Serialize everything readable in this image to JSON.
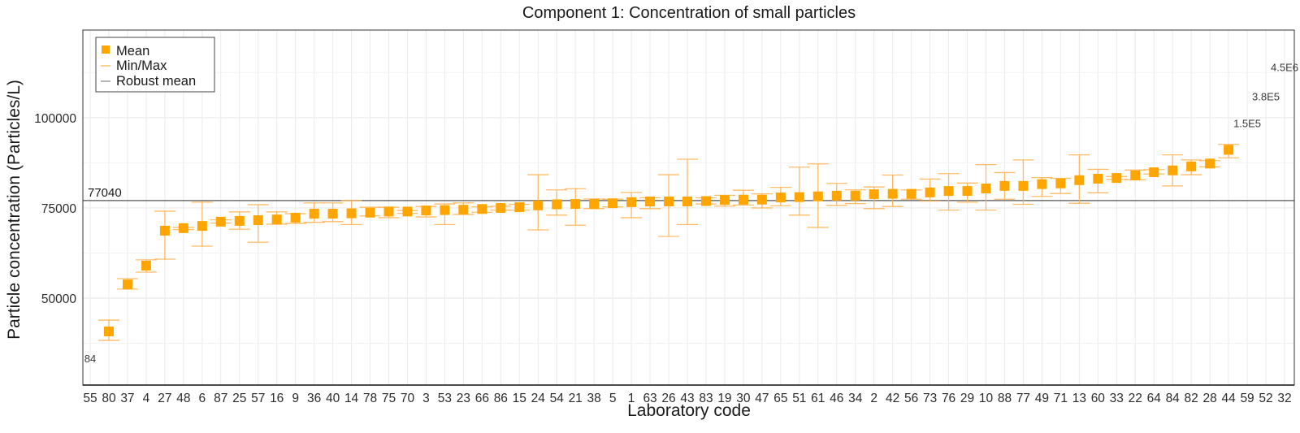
{
  "chart_data": {
    "type": "scatter",
    "title": "Component 1: Concentration of small particles",
    "xlabel": "Laboratory code",
    "ylabel": "Particle concentration (Particles/L)",
    "ylim": [
      25900,
      124300
    ],
    "y_ticks": [
      50000,
      75000,
      100000
    ],
    "y_tick_labels": [
      "50000",
      "75000",
      "100000"
    ],
    "y_minor_grid": [
      37500,
      62500,
      87500,
      112500
    ],
    "grid": true,
    "legend": {
      "position": "top-left",
      "entries": [
        {
          "label": "Mean",
          "kind": "square"
        },
        {
          "label": "Min/Max",
          "kind": "errorbar"
        },
        {
          "label": "Robust mean",
          "kind": "hline"
        }
      ]
    },
    "robust_mean": {
      "value": 77040,
      "label": "77040"
    },
    "colors": {
      "mean": "#FFA500",
      "minmax": "#FFB04D",
      "robust_mean": "#555555",
      "grid": "#EBEBEB"
    },
    "categories": [
      "55",
      "80",
      "37",
      "4",
      "27",
      "48",
      "6",
      "87",
      "25",
      "57",
      "16",
      "9",
      "36",
      "40",
      "14",
      "78",
      "75",
      "70",
      "3",
      "53",
      "23",
      "66",
      "86",
      "15",
      "24",
      "54",
      "21",
      "38",
      "5",
      "1",
      "63",
      "26",
      "43",
      "83",
      "19",
      "30",
      "47",
      "65",
      "51",
      "61",
      "46",
      "34",
      "2",
      "42",
      "56",
      "73",
      "76",
      "29",
      "10",
      "88",
      "77",
      "49",
      "71",
      "13",
      "60",
      "33",
      "22",
      "64",
      "84",
      "82",
      "28",
      "44",
      "59",
      "52",
      "32"
    ],
    "series": [
      {
        "name": "Mean",
        "values": [
          null,
          40770,
          53800,
          59000,
          68700,
          69400,
          70000,
          71200,
          71400,
          71600,
          71800,
          72300,
          73400,
          73400,
          73500,
          73700,
          74000,
          74000,
          74300,
          74400,
          74500,
          74700,
          75000,
          75200,
          75700,
          76000,
          76100,
          76100,
          76300,
          76600,
          76800,
          76800,
          76800,
          76900,
          77200,
          77300,
          77300,
          77900,
          78000,
          78200,
          78400,
          78400,
          78800,
          78900,
          78900,
          79300,
          79700,
          79700,
          80400,
          81100,
          81100,
          81600,
          81800,
          82700,
          83100,
          83300,
          84000,
          84900,
          85400,
          86500,
          87300,
          91100,
          null,
          null,
          null
        ]
      },
      {
        "name": "Min",
        "values": [
          null,
          38300,
          52500,
          57200,
          60800,
          69000,
          64400,
          70800,
          69100,
          65500,
          70500,
          70700,
          71000,
          71200,
          70400,
          72800,
          72300,
          73500,
          72500,
          70400,
          73200,
          73800,
          74400,
          74400,
          68900,
          73000,
          70200,
          74800,
          75300,
          72300,
          74800,
          67100,
          70400,
          76100,
          75500,
          75800,
          75000,
          75600,
          73000,
          69600,
          75700,
          76200,
          74800,
          75400,
          77400,
          76900,
          74400,
          76600,
          74400,
          77400,
          76000,
          78200,
          79000,
          76300,
          79200,
          82900,
          82800,
          84400,
          81100,
          84200,
          86400,
          88900,
          null,
          null,
          null
        ]
      },
      {
        "name": "Max",
        "values": [
          null,
          43900,
          55400,
          60600,
          74100,
          69600,
          76600,
          71700,
          73900,
          75900,
          73900,
          73400,
          76400,
          76400,
          77000,
          75200,
          75200,
          74300,
          75400,
          76100,
          76400,
          75300,
          75500,
          76000,
          84200,
          80000,
          80300,
          77500,
          77400,
          79300,
          77800,
          84200,
          88500,
          77800,
          78500,
          79900,
          78900,
          80700,
          86300,
          87200,
          81800,
          80000,
          80800,
          84100,
          80000,
          83000,
          84500,
          81900,
          87000,
          84800,
          88300,
          83400,
          83200,
          89700,
          85700,
          83700,
          85500,
          85600,
          89700,
          88300,
          88100,
          92600,
          null,
          null,
          null
        ]
      }
    ],
    "offscale_annotations": [
      {
        "category": "55",
        "label": "84",
        "y": 33300
      },
      {
        "category": "59",
        "label": "1.5E5",
        "y": 98500
      },
      {
        "category": "52",
        "label": "3.8E5",
        "y": 106000
      },
      {
        "category": "32",
        "label": "4.5E6",
        "y": 114000
      }
    ]
  }
}
